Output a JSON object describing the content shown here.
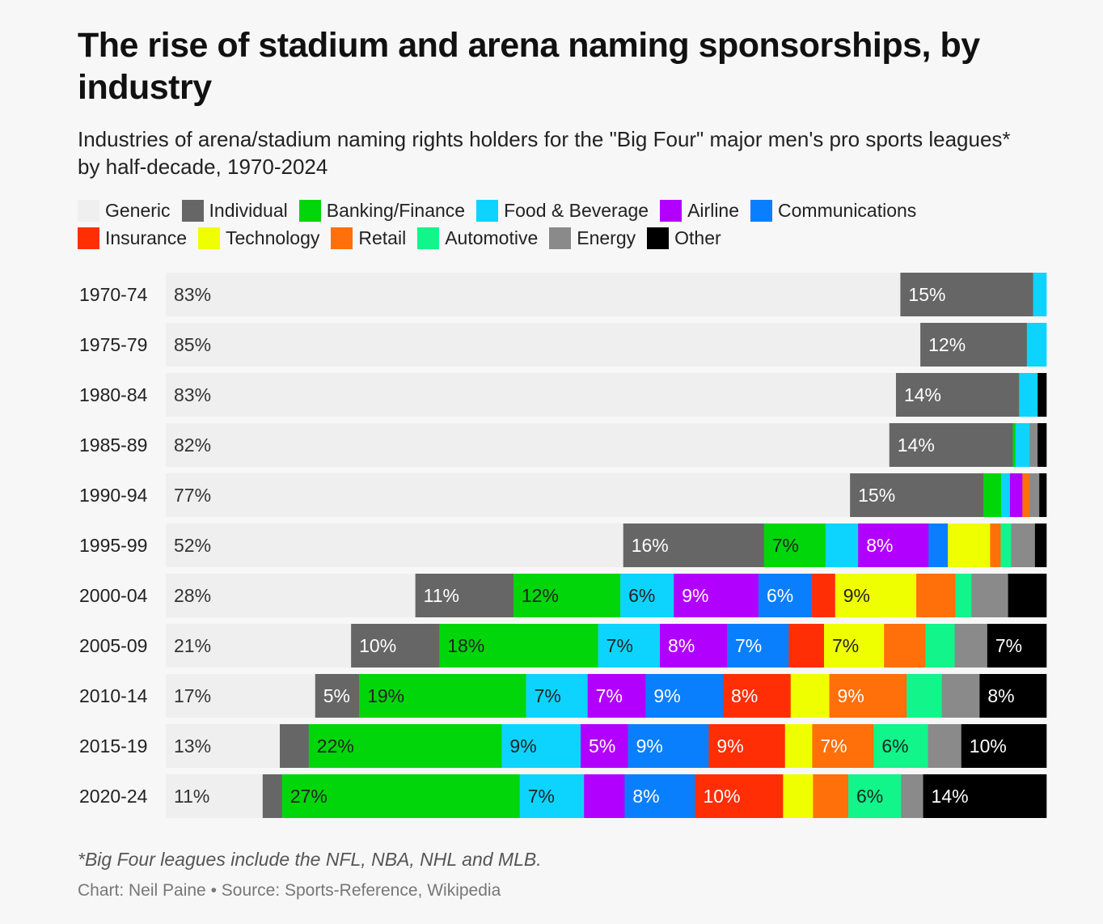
{
  "chart_data": {
    "type": "bar",
    "orientation": "horizontal",
    "stacked": true,
    "unit": "%",
    "title": "The rise of stadium and arena naming sponsorships, by industry",
    "subtitle": "Industries of arena/stadium naming rights holders for the \"Big Four\" major men's pro sports leagues* by half-decade, 1970-2024",
    "legend_position": "top",
    "grid": false,
    "categories": [
      "1970-74",
      "1975-79",
      "1980-84",
      "1985-89",
      "1990-94",
      "1995-99",
      "2000-04",
      "2005-09",
      "2010-14",
      "2015-19",
      "2020-24"
    ],
    "series": [
      {
        "name": "Generic",
        "color": "#efefef",
        "label_color": "#333333",
        "values": [
          83,
          85,
          83,
          82,
          77,
          52,
          28,
          21,
          17,
          13,
          11
        ],
        "labels": [
          "83%",
          "85%",
          "83%",
          "82%",
          "77%",
          "52%",
          "28%",
          "21%",
          "17%",
          "13%",
          "11%"
        ]
      },
      {
        "name": "Individual",
        "color": "#666666",
        "label_color": "#ffffff",
        "values": [
          15,
          12,
          14,
          14,
          15,
          16,
          11,
          10,
          5,
          3.3,
          2.2
        ],
        "labels": [
          "15%",
          "12%",
          "14%",
          "14%",
          "15%",
          "16%",
          "11%",
          "10%",
          "5%",
          "",
          ""
        ]
      },
      {
        "name": "Banking/Finance",
        "color": "#00d60a",
        "label_color": "#222222",
        "values": [
          0,
          0,
          0,
          0.3,
          2,
          7,
          12,
          18,
          19,
          22,
          27
        ],
        "labels": [
          "",
          "",
          "",
          "",
          "",
          "7%",
          "12%",
          "18%",
          "19%",
          "22%",
          "27%"
        ]
      },
      {
        "name": "Food & Beverage",
        "color": "#0dd4ff",
        "label_color": "#222222",
        "values": [
          1.5,
          2.2,
          2.1,
          1.6,
          1,
          3.7,
          6,
          7,
          7,
          9,
          7.3
        ],
        "labels": [
          "",
          "",
          "",
          "",
          "",
          "",
          "6%",
          "7%",
          "7%",
          "9%",
          "7%"
        ]
      },
      {
        "name": "Airline",
        "color": "#b200ff",
        "label_color": "#ffffff",
        "values": [
          0,
          0,
          0,
          0,
          1.4,
          8,
          9.5,
          7.6,
          6.6,
          5.4,
          4.6
        ],
        "labels": [
          "",
          "",
          "",
          "",
          "",
          "8%",
          "9%",
          "8%",
          "7%",
          "5%",
          ""
        ]
      },
      {
        "name": "Communications",
        "color": "#0a7ffd",
        "label_color": "#ffffff",
        "values": [
          0,
          0,
          0,
          0,
          0,
          2.2,
          6,
          7,
          8.8,
          9.2,
          8
        ],
        "labels": [
          "",
          "",
          "",
          "",
          "",
          "",
          "6%",
          "7%",
          "9%",
          "9%",
          "8%"
        ]
      },
      {
        "name": "Insurance",
        "color": "#ff2e05",
        "label_color": "#ffffff",
        "values": [
          0,
          0,
          0,
          0,
          0,
          0,
          2.6,
          4,
          7.7,
          8.7,
          10
        ],
        "labels": [
          "",
          "",
          "",
          "",
          "",
          "",
          "",
          "",
          "8%",
          "9%",
          "10%"
        ]
      },
      {
        "name": "Technology",
        "color": "#f0ff00",
        "label_color": "#222222",
        "values": [
          0,
          0,
          0,
          0,
          0,
          4.8,
          9.1,
          6.8,
          4.4,
          3.1,
          3.4
        ],
        "labels": [
          "",
          "",
          "",
          "",
          "",
          "",
          "9%",
          "7%",
          "",
          "",
          ""
        ]
      },
      {
        "name": "Retail",
        "color": "#ff6f0a",
        "label_color": "#ffffff",
        "values": [
          0,
          0,
          0,
          0,
          0.8,
          1.2,
          4.4,
          4.7,
          8.8,
          7,
          4
        ],
        "labels": [
          "",
          "",
          "",
          "",
          "",
          "",
          "",
          "",
          "9%",
          "7%",
          ""
        ]
      },
      {
        "name": "Automotive",
        "color": "#11f58a",
        "label_color": "#222222",
        "values": [
          0,
          0,
          0,
          0,
          0,
          1.2,
          1.8,
          3.3,
          4,
          6.2,
          6
        ],
        "labels": [
          "",
          "",
          "",
          "",
          "",
          "",
          "",
          "",
          "",
          "6%",
          "6%"
        ]
      },
      {
        "name": "Energy",
        "color": "#8a8a8a",
        "label_color": "#ffffff",
        "values": [
          0,
          0,
          0,
          0.9,
          1.1,
          2.7,
          4.1,
          3.7,
          4.3,
          3.8,
          2.5
        ],
        "labels": [
          "",
          "",
          "",
          "",
          "",
          "",
          "",
          "",
          "",
          "",
          ""
        ]
      },
      {
        "name": "Other",
        "color": "#000000",
        "label_color": "#ffffff",
        "values": [
          0,
          0,
          1,
          1,
          0.8,
          1.3,
          4.3,
          6.7,
          7.6,
          9.7,
          14
        ],
        "labels": [
          "",
          "",
          "",
          "",
          "",
          "",
          "",
          "7%",
          "8%",
          "10%",
          "14%"
        ]
      }
    ]
  },
  "footnote": "*Big Four leagues include the NFL, NBA, NHL and MLB.",
  "credit": "Chart: Neil Paine • Source: Sports-Reference, Wikipedia"
}
